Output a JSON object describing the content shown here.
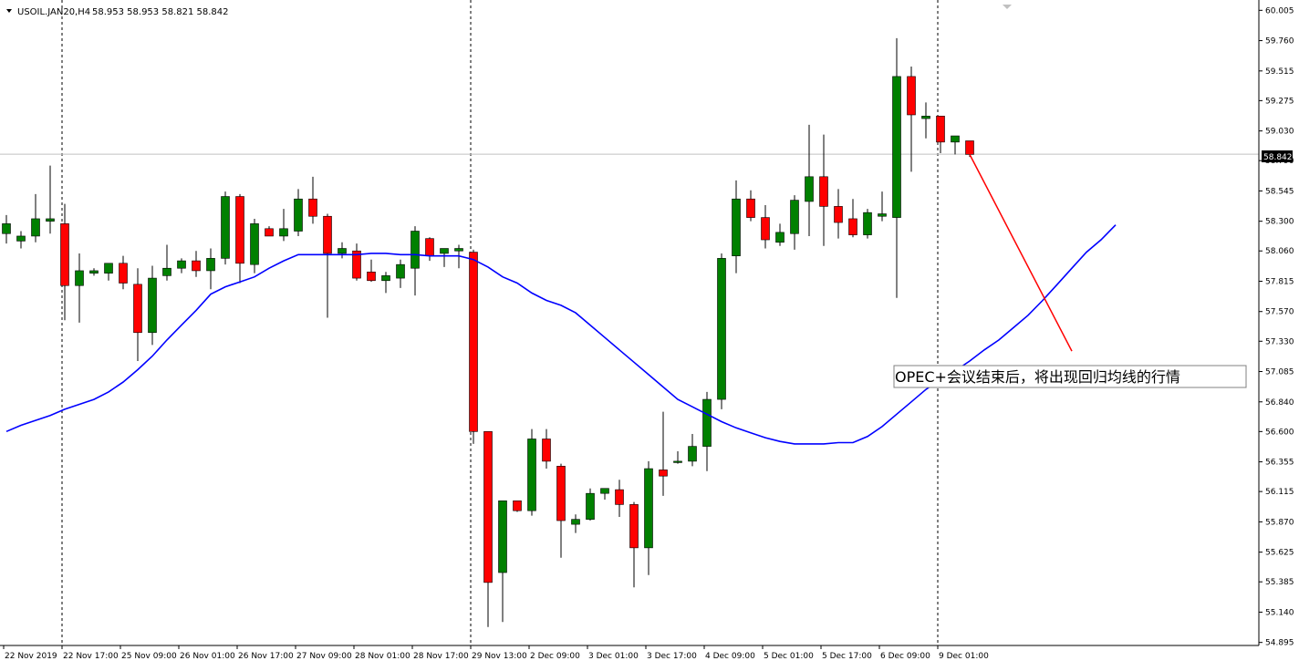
{
  "window": {
    "symbol_header": "USOIL.JAN20,H4",
    "ohlc_header": "58.953 58.953 58.821 58.842"
  },
  "annotation": {
    "text": "OPEC+会议结束后，将出现回归均线的行情"
  },
  "colors": {
    "bull": "#008000",
    "bear": "#ff0000",
    "ma": "#0000ff",
    "arrow": "#ff0000",
    "axis": "#000000",
    "grid_sep": "#000000",
    "price_line": "#c0c0c0"
  },
  "chart_data": {
    "type": "candlestick",
    "title": "",
    "timeframe": "H4",
    "ylim": [
      54.9,
      60.0
    ],
    "y_ticks": [
      "60.005",
      "59.760",
      "59.515",
      "59.275",
      "59.030",
      "58.790",
      "58.545",
      "58.300",
      "58.060",
      "57.815",
      "57.570",
      "57.330",
      "57.085",
      "56.840",
      "56.600",
      "56.355",
      "56.115",
      "55.870",
      "55.625",
      "55.385",
      "55.140",
      "54.895"
    ],
    "x_labels": [
      "22 Nov 2019",
      "22 Nov 17:00",
      "25 Nov 09:00",
      "26 Nov 01:00",
      "26 Nov 17:00",
      "27 Nov 09:00",
      "28 Nov 01:00",
      "28 Nov 17:00",
      "29 Nov 13:00",
      "2 Dec 09:00",
      "3 Dec 01:00",
      "3 Dec 17:00",
      "4 Dec 09:00",
      "5 Dec 01:00",
      "5 Dec 17:00",
      "6 Dec 09:00",
      "9 Dec 01:00"
    ],
    "day_separators_at_label": [
      "22 Nov 17:00",
      "29 Nov 13:00",
      "9 Dec 01:00"
    ],
    "last_price": "58.842",
    "candles": [
      {
        "o": 58.2,
        "h": 58.35,
        "l": 58.12,
        "c": 58.28
      },
      {
        "o": 58.14,
        "h": 58.22,
        "l": 58.08,
        "c": 58.18
      },
      {
        "o": 58.18,
        "h": 58.52,
        "l": 58.13,
        "c": 58.32
      },
      {
        "o": 58.3,
        "h": 58.75,
        "l": 58.2,
        "c": 58.32
      },
      {
        "o": 58.28,
        "h": 58.44,
        "l": 57.5,
        "c": 57.78
      },
      {
        "o": 57.78,
        "h": 58.04,
        "l": 57.48,
        "c": 57.9
      },
      {
        "o": 57.88,
        "h": 57.92,
        "l": 57.86,
        "c": 57.9
      },
      {
        "o": 57.88,
        "h": 57.96,
        "l": 57.82,
        "c": 57.96
      },
      {
        "o": 57.96,
        "h": 58.02,
        "l": 57.75,
        "c": 57.8
      },
      {
        "o": 57.79,
        "h": 57.92,
        "l": 57.17,
        "c": 57.4
      },
      {
        "o": 57.4,
        "h": 57.94,
        "l": 57.3,
        "c": 57.84
      },
      {
        "o": 57.86,
        "h": 58.11,
        "l": 57.82,
        "c": 57.92
      },
      {
        "o": 57.92,
        "h": 58.0,
        "l": 57.88,
        "c": 57.98
      },
      {
        "o": 57.98,
        "h": 58.06,
        "l": 57.85,
        "c": 57.9
      },
      {
        "o": 57.9,
        "h": 58.08,
        "l": 57.75,
        "c": 58.0
      },
      {
        "o": 58.0,
        "h": 58.54,
        "l": 57.95,
        "c": 58.5
      },
      {
        "o": 58.5,
        "h": 58.52,
        "l": 57.8,
        "c": 57.96
      },
      {
        "o": 57.95,
        "h": 58.32,
        "l": 57.88,
        "c": 58.28
      },
      {
        "o": 58.24,
        "h": 58.26,
        "l": 58.18,
        "c": 58.18
      },
      {
        "o": 58.18,
        "h": 58.4,
        "l": 58.14,
        "c": 58.24
      },
      {
        "o": 58.22,
        "h": 58.56,
        "l": 58.18,
        "c": 58.48
      },
      {
        "o": 58.48,
        "h": 58.66,
        "l": 58.28,
        "c": 58.34
      },
      {
        "o": 58.34,
        "h": 58.36,
        "l": 57.52,
        "c": 58.04
      },
      {
        "o": 58.04,
        "h": 58.13,
        "l": 58.0,
        "c": 58.08
      },
      {
        "o": 58.06,
        "h": 58.12,
        "l": 57.82,
        "c": 57.84
      },
      {
        "o": 57.89,
        "h": 57.99,
        "l": 57.81,
        "c": 57.82
      },
      {
        "o": 57.82,
        "h": 57.89,
        "l": 57.72,
        "c": 57.86
      },
      {
        "o": 57.84,
        "h": 57.99,
        "l": 57.76,
        "c": 57.95
      },
      {
        "o": 57.92,
        "h": 58.26,
        "l": 57.7,
        "c": 58.22
      },
      {
        "o": 58.16,
        "h": 58.17,
        "l": 57.98,
        "c": 58.02
      },
      {
        "o": 58.04,
        "h": 58.08,
        "l": 57.93,
        "c": 58.08
      },
      {
        "o": 58.06,
        "h": 58.11,
        "l": 57.92,
        "c": 58.08
      },
      {
        "o": 58.05,
        "h": 58.07,
        "l": 56.5,
        "c": 56.6
      },
      {
        "o": 56.6,
        "h": 56.6,
        "l": 55.02,
        "c": 55.38
      },
      {
        "o": 55.46,
        "h": 56.04,
        "l": 55.06,
        "c": 56.04
      },
      {
        "o": 56.04,
        "h": 56.04,
        "l": 55.95,
        "c": 55.96
      },
      {
        "o": 55.96,
        "h": 56.62,
        "l": 55.92,
        "c": 56.54
      },
      {
        "o": 56.54,
        "h": 56.62,
        "l": 56.3,
        "c": 56.36
      },
      {
        "o": 56.32,
        "h": 56.34,
        "l": 55.58,
        "c": 55.88
      },
      {
        "o": 55.85,
        "h": 55.93,
        "l": 55.78,
        "c": 55.89
      },
      {
        "o": 55.89,
        "h": 56.14,
        "l": 55.88,
        "c": 56.1
      },
      {
        "o": 56.1,
        "h": 56.13,
        "l": 56.05,
        "c": 56.14
      },
      {
        "o": 56.13,
        "h": 56.21,
        "l": 55.91,
        "c": 56.01
      },
      {
        "o": 56.01,
        "h": 56.03,
        "l": 55.34,
        "c": 55.66
      },
      {
        "o": 55.66,
        "h": 56.36,
        "l": 55.44,
        "c": 56.3
      },
      {
        "o": 56.29,
        "h": 56.76,
        "l": 56.08,
        "c": 56.24
      },
      {
        "o": 56.36,
        "h": 56.44,
        "l": 56.34,
        "c": 56.36
      },
      {
        "o": 56.36,
        "h": 56.58,
        "l": 56.32,
        "c": 56.48
      },
      {
        "o": 56.48,
        "h": 56.92,
        "l": 56.28,
        "c": 56.86
      },
      {
        "o": 56.86,
        "h": 58.04,
        "l": 56.78,
        "c": 58.0
      },
      {
        "o": 58.02,
        "h": 58.63,
        "l": 57.88,
        "c": 58.48
      },
      {
        "o": 58.48,
        "h": 58.55,
        "l": 58.3,
        "c": 58.33
      },
      {
        "o": 58.33,
        "h": 58.43,
        "l": 58.08,
        "c": 58.15
      },
      {
        "o": 58.13,
        "h": 58.28,
        "l": 58.1,
        "c": 58.21
      },
      {
        "o": 58.2,
        "h": 58.51,
        "l": 58.07,
        "c": 58.47
      },
      {
        "o": 58.46,
        "h": 59.08,
        "l": 58.18,
        "c": 58.66
      },
      {
        "o": 58.66,
        "h": 59.0,
        "l": 58.1,
        "c": 58.42
      },
      {
        "o": 58.42,
        "h": 58.56,
        "l": 58.16,
        "c": 58.29
      },
      {
        "o": 58.32,
        "h": 58.48,
        "l": 58.17,
        "c": 58.19
      },
      {
        "o": 58.19,
        "h": 58.4,
        "l": 58.16,
        "c": 58.37
      },
      {
        "o": 58.34,
        "h": 58.54,
        "l": 58.3,
        "c": 58.36
      },
      {
        "o": 58.33,
        "h": 59.78,
        "l": 57.68,
        "c": 59.47
      },
      {
        "o": 59.47,
        "h": 59.55,
        "l": 58.7,
        "c": 59.16
      },
      {
        "o": 59.13,
        "h": 59.26,
        "l": 58.97,
        "c": 59.15
      },
      {
        "o": 59.15,
        "h": 59.15,
        "l": 58.85,
        "c": 58.94
      },
      {
        "o": 58.94,
        "h": 58.98,
        "l": 58.84,
        "c": 58.99
      },
      {
        "o": 58.95,
        "h": 58.95,
        "l": 58.82,
        "c": 58.84
      }
    ],
    "ma_series": {
      "name": "",
      "values": [
        56.6,
        56.65,
        56.69,
        56.73,
        56.78,
        56.82,
        56.86,
        56.92,
        57.0,
        57.1,
        57.21,
        57.34,
        57.46,
        57.58,
        57.71,
        57.77,
        57.81,
        57.85,
        57.92,
        57.98,
        58.03,
        58.03,
        58.03,
        58.03,
        58.03,
        58.04,
        58.04,
        58.03,
        58.03,
        58.02,
        58.02,
        58.02,
        57.99,
        57.93,
        57.85,
        57.8,
        57.72,
        57.66,
        57.62,
        57.56,
        57.46,
        57.36,
        57.26,
        57.16,
        57.06,
        56.96,
        56.86,
        56.8,
        56.74,
        56.68,
        56.63,
        56.59,
        56.55,
        56.52,
        56.5,
        56.5,
        56.5,
        56.51,
        56.51,
        56.56,
        56.64,
        56.74,
        56.84,
        56.94,
        57.02,
        57.09,
        57.17,
        57.26,
        57.34,
        57.44,
        57.54,
        57.66,
        57.79,
        57.92,
        58.05,
        58.15,
        58.27
      ]
    },
    "arrow_target_price": 57.25
  }
}
